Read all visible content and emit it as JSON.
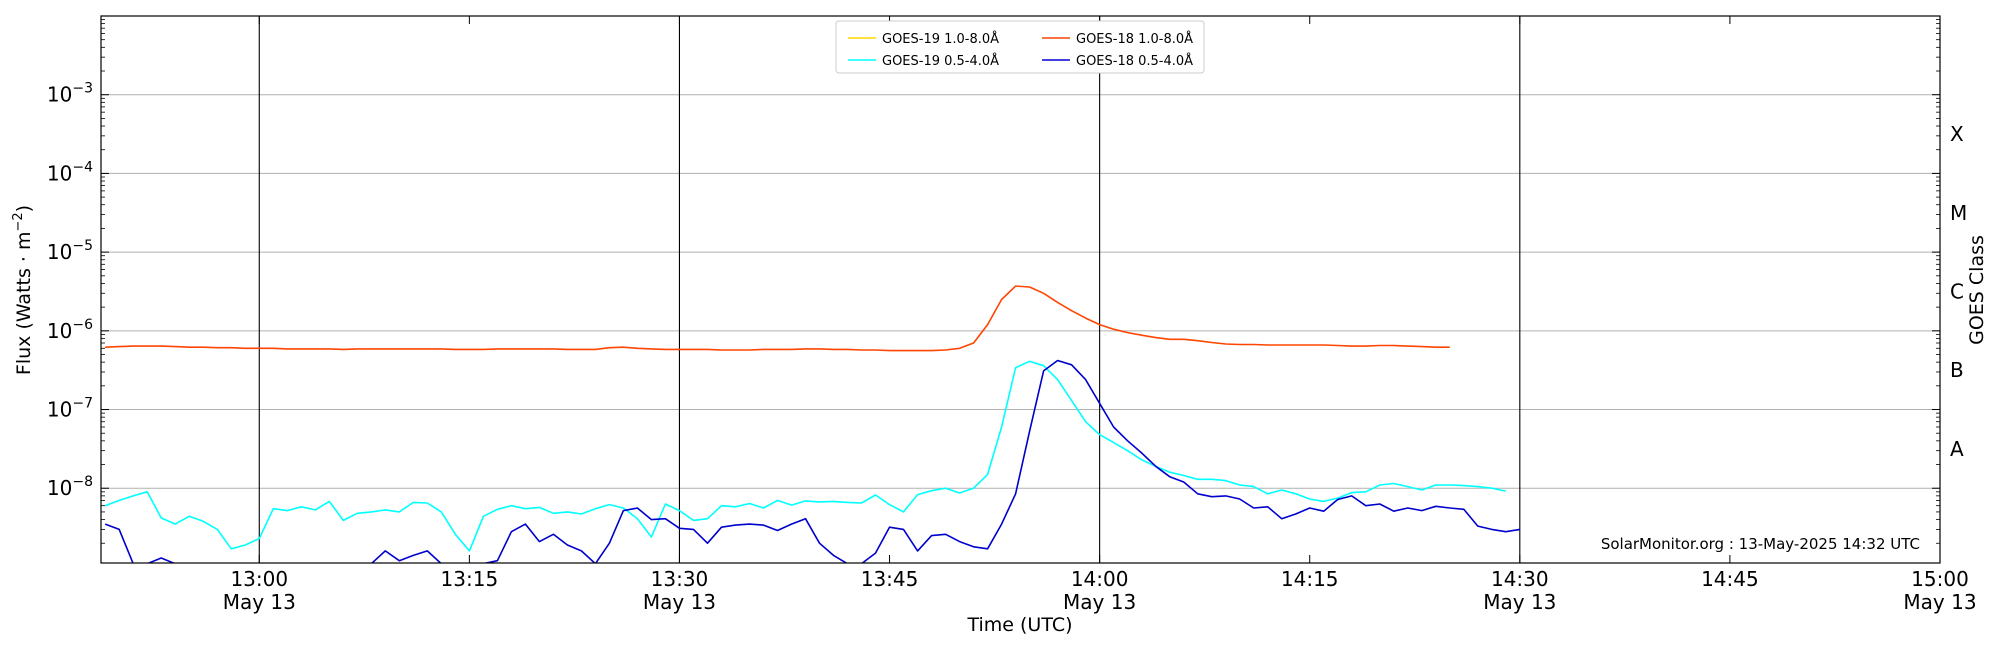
{
  "chart_data": {
    "type": "line",
    "xlabel": "Time (UTC)",
    "ylabel_main": "Flux (Watts · m",
    "ylabel_exp": "−2",
    "ylabel_close": ")",
    "ylabel_right": "GOES Class",
    "credit": "SolarMonitor.org : 13-May-2025 14:32 UTC",
    "x_range_minutes": [
      12.5,
      100
    ],
    "y_range_log10": [
      -8.95,
      -2.0
    ],
    "x_ticks": [
      {
        "t": 0,
        "time": "13:00",
        "date": "May 13"
      },
      {
        "t": 15,
        "time": "13:15",
        "date": ""
      },
      {
        "t": 30,
        "time": "13:30",
        "date": "May 13"
      },
      {
        "t": 45,
        "time": "13:45",
        "date": ""
      },
      {
        "t": 60,
        "time": "14:00",
        "date": "May 13"
      },
      {
        "t": 75,
        "time": "14:15",
        "date": ""
      },
      {
        "t": 90,
        "time": "14:30",
        "date": "May 13"
      },
      {
        "t": 105,
        "time": "14:45",
        "date": ""
      },
      {
        "t": 120,
        "time": "15:00",
        "date": "May 13"
      }
    ],
    "y_ticks": [
      {
        "exp": -8,
        "base": "10",
        "sup": "−8"
      },
      {
        "exp": -7,
        "base": "10",
        "sup": "−7"
      },
      {
        "exp": -6,
        "base": "10",
        "sup": "−6"
      },
      {
        "exp": -5,
        "base": "10",
        "sup": "−5"
      },
      {
        "exp": -4,
        "base": "10",
        "sup": "−4"
      },
      {
        "exp": -3,
        "base": "10",
        "sup": "−3"
      }
    ],
    "goes_classes": [
      {
        "label": "A",
        "exp": -7.5
      },
      {
        "label": "B",
        "exp": -6.5
      },
      {
        "label": "C",
        "exp": -5.5
      },
      {
        "label": "M",
        "exp": -4.5
      },
      {
        "label": "X",
        "exp": -3.5
      }
    ],
    "vertical_lines_minutes": [
      0,
      30,
      60,
      90
    ],
    "series": [
      {
        "name": "GOES-19 1.0-8.0Å",
        "color": "#ffd700",
        "t0": -11,
        "dt": 1,
        "values": []
      },
      {
        "name": "GOES-18 1.0-8.0Å",
        "color": "#ff4500",
        "t0": -11,
        "dt": 1,
        "values": [
          6.2e-07,
          6.3e-07,
          6.4e-07,
          6.4e-07,
          6.4e-07,
          6.3e-07,
          6.2e-07,
          6.2e-07,
          6.1e-07,
          6.1e-07,
          6e-07,
          6e-07,
          6e-07,
          5.9e-07,
          5.9e-07,
          5.9e-07,
          5.9e-07,
          5.8e-07,
          5.9e-07,
          5.9e-07,
          5.9e-07,
          5.9e-07,
          5.9e-07,
          5.9e-07,
          5.9e-07,
          5.8e-07,
          5.8e-07,
          5.8e-07,
          5.9e-07,
          5.9e-07,
          5.9e-07,
          5.9e-07,
          5.9e-07,
          5.8e-07,
          5.8e-07,
          5.8e-07,
          6.1e-07,
          6.2e-07,
          6e-07,
          5.9e-07,
          5.8e-07,
          5.8e-07,
          5.8e-07,
          5.8e-07,
          5.7e-07,
          5.7e-07,
          5.7e-07,
          5.8e-07,
          5.8e-07,
          5.8e-07,
          5.9e-07,
          5.9e-07,
          5.8e-07,
          5.8e-07,
          5.7e-07,
          5.7e-07,
          5.6e-07,
          5.6e-07,
          5.6e-07,
          5.6e-07,
          5.7e-07,
          6e-07,
          7e-07,
          1.2e-06,
          2.5e-06,
          3.7e-06,
          3.6e-06,
          3e-06,
          2.3e-06,
          1.8e-06,
          1.45e-06,
          1.2e-06,
          1.05e-06,
          9.5e-07,
          8.8e-07,
          8.2e-07,
          7.8e-07,
          7.8e-07,
          7.5e-07,
          7.1e-07,
          6.8e-07,
          6.7e-07,
          6.7e-07,
          6.6e-07,
          6.6e-07,
          6.6e-07,
          6.6e-07,
          6.6e-07,
          6.5e-07,
          6.4e-07,
          6.4e-07,
          6.5e-07,
          6.5e-07,
          6.4e-07,
          6.3e-07,
          6.2e-07,
          6.2e-07
        ]
      },
      {
        "name": "GOES-19 0.5-4.0Å",
        "color": "#00ffff",
        "t0": -11,
        "dt": 1,
        "values": [
          6e-09,
          7e-09,
          8e-09,
          9e-09,
          4.2e-09,
          3.5e-09,
          4.4e-09,
          3.8e-09,
          3e-09,
          1.7e-09,
          1.9e-09,
          2.3e-09,
          5.5e-09,
          5.2e-09,
          5.8e-09,
          5.3e-09,
          6.8e-09,
          3.9e-09,
          4.8e-09,
          5e-09,
          5.3e-09,
          5e-09,
          6.6e-09,
          6.5e-09,
          5e-09,
          2.6e-09,
          1.6e-09,
          4.4e-09,
          5.4e-09,
          6e-09,
          5.5e-09,
          5.7e-09,
          4.8e-09,
          5e-09,
          4.7e-09,
          5.5e-09,
          6.2e-09,
          5.6e-09,
          4.1e-09,
          2.4e-09,
          6.3e-09,
          5.2e-09,
          3.9e-09,
          4.1e-09,
          6e-09,
          5.8e-09,
          6.4e-09,
          5.6e-09,
          7e-09,
          6.1e-09,
          6.9e-09,
          6.7e-09,
          6.8e-09,
          6.6e-09,
          6.5e-09,
          8.2e-09,
          6.2e-09,
          5e-09,
          8.3e-09,
          9.3e-09,
          1e-08,
          8.7e-09,
          1e-08,
          1.5e-08,
          6e-08,
          3.4e-07,
          4.1e-07,
          3.6e-07,
          2.4e-07,
          1.3e-07,
          7e-08,
          4.8e-08,
          3.8e-08,
          3e-08,
          2.3e-08,
          1.9e-08,
          1.6e-08,
          1.45e-08,
          1.3e-08,
          1.3e-08,
          1.25e-08,
          1.1e-08,
          1.05e-08,
          8.5e-09,
          9.5e-09,
          8.5e-09,
          7.3e-09,
          6.8e-09,
          7.5e-09,
          8.8e-09,
          9e-09,
          1.1e-08,
          1.15e-08,
          1.05e-08,
          9.5e-09,
          1.1e-08,
          1.1e-08,
          1.08e-08,
          1.05e-08,
          1e-08,
          9.2e-09
        ]
      },
      {
        "name": "GOES-18 0.5-4.0Å",
        "color": "#0000cd",
        "t0": -11,
        "dt": 1,
        "values": [
          3.5e-09,
          3e-09,
          1.1e-09,
          1.1e-09,
          1.3e-09,
          1.1e-09,
          1.1e-09,
          1.1e-09,
          1.1e-09,
          1.1e-09,
          1.1e-09,
          1.1e-09,
          1.1e-09,
          1.1e-09,
          1.1e-09,
          1.1e-09,
          1.1e-09,
          1.1e-09,
          1.1e-09,
          1.1e-09,
          1.6e-09,
          1.2e-09,
          1.4e-09,
          1.6e-09,
          1.1e-09,
          1.1e-09,
          1.1e-09,
          1.1e-09,
          1.2e-09,
          2.8e-09,
          3.5e-09,
          2.1e-09,
          2.6e-09,
          1.9e-09,
          1.6e-09,
          1.1e-09,
          2e-09,
          5.2e-09,
          5.6e-09,
          4e-09,
          4.1e-09,
          3.1e-09,
          3e-09,
          2e-09,
          3.2e-09,
          3.4e-09,
          3.5e-09,
          3.4e-09,
          2.9e-09,
          3.5e-09,
          4.1e-09,
          2e-09,
          1.4e-09,
          1.1e-09,
          1.1e-09,
          1.5e-09,
          3.2e-09,
          3e-09,
          1.6e-09,
          2.5e-09,
          2.6e-09,
          2.1e-09,
          1.8e-09,
          1.7e-09,
          3.5e-09,
          8.5e-09,
          5.3e-08,
          3.1e-07,
          4.2e-07,
          3.7e-07,
          2.4e-07,
          1.2e-07,
          6e-08,
          4e-08,
          2.8e-08,
          1.9e-08,
          1.4e-08,
          1.2e-08,
          8.5e-09,
          7.8e-09,
          8e-09,
          7.3e-09,
          5.6e-09,
          5.8e-09,
          4.1e-09,
          4.7e-09,
          5.6e-09,
          5.1e-09,
          7.2e-09,
          8e-09,
          6e-09,
          6.3e-09,
          5.1e-09,
          5.6e-09,
          5.2e-09,
          5.9e-09,
          5.6e-09,
          5.4e-09,
          3.3e-09,
          3e-09,
          2.8e-09,
          3e-09
        ]
      }
    ],
    "legend_order": [
      0,
      2,
      1,
      3
    ]
  }
}
